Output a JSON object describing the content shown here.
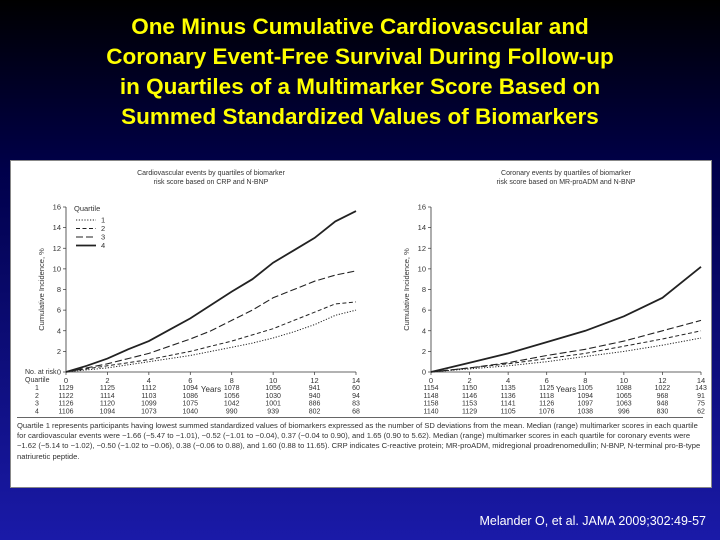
{
  "slide": {
    "title_lines": [
      "One Minus Cumulative Cardiovascular and",
      "Coronary Event-Free Survival During Follow-up",
      "in Quartiles of a Multimarker Score Based on",
      "Summed Standardized Values of Biomarkers"
    ],
    "citation": "Melander O, et al. JAMA 2009;302:49-57",
    "footnote": "Quartile 1 represents participants having lowest summed standardized values of biomarkers expressed as the number of SD deviations from the mean. Median (range) multimarker scores in each quartile for cardiovascular events were −1.66 (−5.47 to −1.01), −0.52 (−1.01 to −0.04), 0.37 (−0.04 to 0.90), and 1.65 (0.90 to 5.62). Median (range) multimarker scores in each quartile for coronary events were −1.62 (−5.14 to −1.02), −0.50 (−1.02 to −0.06), 0.38 (−0.06 to 0.88), and 1.60 (0.88 to 11.65). CRP indicates C-reactive protein; MR-proADM, midregional proadrenomedullin; N-BNP, N-terminal pro-B-type natriuretic peptide.",
    "colors": {
      "title": "#ffff00",
      "citation": "#ffffff",
      "panel": "#ffffff"
    }
  },
  "chart_data": [
    {
      "type": "line",
      "title_lines": [
        "Cardiovascular events by quartiles of biomarker",
        "risk score based on CRP and N-BNP"
      ],
      "xlabel": "Years",
      "ylabel": "Cumulative Incidence, %",
      "xlim": [
        0,
        14
      ],
      "ylim": [
        0,
        16
      ],
      "xticks": [
        0,
        2,
        4,
        6,
        8,
        10,
        12,
        14
      ],
      "yticks": [
        0,
        2,
        4,
        6,
        8,
        10,
        12,
        14,
        16
      ],
      "legend_title": "Quartile",
      "legend_position": "top-left",
      "series": [
        {
          "name": "1",
          "style": "dotted",
          "x": [
            0,
            1,
            2,
            3,
            4,
            5,
            6,
            7,
            8,
            9,
            10,
            11,
            12,
            13,
            14
          ],
          "values": [
            0,
            0.2,
            0.4,
            0.7,
            1.0,
            1.3,
            1.6,
            2.0,
            2.4,
            2.8,
            3.3,
            3.9,
            4.6,
            5.5,
            6.0
          ]
        },
        {
          "name": "2",
          "style": "dashed",
          "x": [
            0,
            1,
            2,
            3,
            4,
            5,
            6,
            7,
            8,
            9,
            10,
            11,
            12,
            13,
            14
          ],
          "values": [
            0,
            0.3,
            0.6,
            0.9,
            1.2,
            1.6,
            2.0,
            2.5,
            3.0,
            3.6,
            4.2,
            5.0,
            5.8,
            6.6,
            6.8
          ]
        },
        {
          "name": "3",
          "style": "longdash",
          "x": [
            0,
            1,
            2,
            3,
            4,
            5,
            6,
            7,
            8,
            9,
            10,
            11,
            12,
            13,
            14
          ],
          "values": [
            0,
            0.4,
            0.8,
            1.3,
            1.8,
            2.5,
            3.2,
            4.0,
            5.0,
            6.0,
            7.2,
            8.0,
            8.8,
            9.4,
            9.8
          ]
        },
        {
          "name": "4",
          "style": "solid",
          "x": [
            0,
            1,
            2,
            3,
            4,
            5,
            6,
            7,
            8,
            9,
            10,
            11,
            12,
            13,
            14
          ],
          "values": [
            0,
            0.6,
            1.3,
            2.2,
            3.0,
            4.1,
            5.2,
            6.5,
            7.8,
            9.0,
            10.6,
            11.8,
            13.0,
            14.6,
            15.6
          ]
        }
      ],
      "at_risk": {
        "label_lines": [
          "No. at risk",
          "Quartile"
        ],
        "rows": [
          {
            "q": "1",
            "values": [
              "1129",
              "1125",
              "1112",
              "1094",
              "1078",
              "1056",
              "941",
              "60"
            ]
          },
          {
            "q": "2",
            "values": [
              "1122",
              "1114",
              "1103",
              "1086",
              "1056",
              "1030",
              "940",
              "94"
            ]
          },
          {
            "q": "3",
            "values": [
              "1126",
              "1120",
              "1099",
              "1075",
              "1042",
              "1001",
              "886",
              "83"
            ]
          },
          {
            "q": "4",
            "values": [
              "1106",
              "1094",
              "1073",
              "1040",
              "990",
              "939",
              "802",
              "68"
            ]
          }
        ]
      }
    },
    {
      "type": "line",
      "title_lines": [
        "Coronary events by quartiles of biomarker",
        "risk score based on MR-proADM and N-BNP"
      ],
      "xlabel": "Years",
      "ylabel": "Cumulative Incidence, %",
      "xlim": [
        0,
        14
      ],
      "ylim": [
        0,
        16
      ],
      "xticks": [
        0,
        2,
        4,
        6,
        8,
        10,
        12,
        14
      ],
      "yticks": [
        0,
        2,
        4,
        6,
        8,
        10,
        12,
        14,
        16
      ],
      "series": [
        {
          "name": "1",
          "style": "dotted",
          "x": [
            0,
            2,
            4,
            6,
            8,
            10,
            12,
            14
          ],
          "values": [
            0,
            0.3,
            0.6,
            1.0,
            1.5,
            2.0,
            2.6,
            3.3
          ]
        },
        {
          "name": "2",
          "style": "dashed",
          "x": [
            0,
            2,
            4,
            6,
            8,
            10,
            12,
            14
          ],
          "values": [
            0,
            0.4,
            0.8,
            1.3,
            1.8,
            2.5,
            3.2,
            4.0
          ]
        },
        {
          "name": "3",
          "style": "longdash",
          "x": [
            0,
            2,
            4,
            6,
            8,
            10,
            12,
            14
          ],
          "values": [
            0,
            0.4,
            0.9,
            1.6,
            2.2,
            3.0,
            4.0,
            5.0
          ]
        },
        {
          "name": "4",
          "style": "solid",
          "x": [
            0,
            2,
            4,
            6,
            8,
            10,
            12,
            14
          ],
          "values": [
            0,
            0.9,
            1.8,
            2.9,
            4.0,
            5.4,
            7.2,
            10.2
          ]
        }
      ],
      "at_risk": {
        "rows": [
          {
            "q": "1",
            "values": [
              "1154",
              "1150",
              "1135",
              "1125",
              "1105",
              "1088",
              "1022",
              "143"
            ]
          },
          {
            "q": "2",
            "values": [
              "1148",
              "1146",
              "1136",
              "1118",
              "1094",
              "1065",
              "968",
              "91"
            ]
          },
          {
            "q": "3",
            "values": [
              "1158",
              "1153",
              "1141",
              "1126",
              "1097",
              "1063",
              "948",
              "75"
            ]
          },
          {
            "q": "4",
            "values": [
              "1140",
              "1129",
              "1105",
              "1076",
              "1038",
              "996",
              "830",
              "62"
            ]
          }
        ]
      }
    }
  ]
}
